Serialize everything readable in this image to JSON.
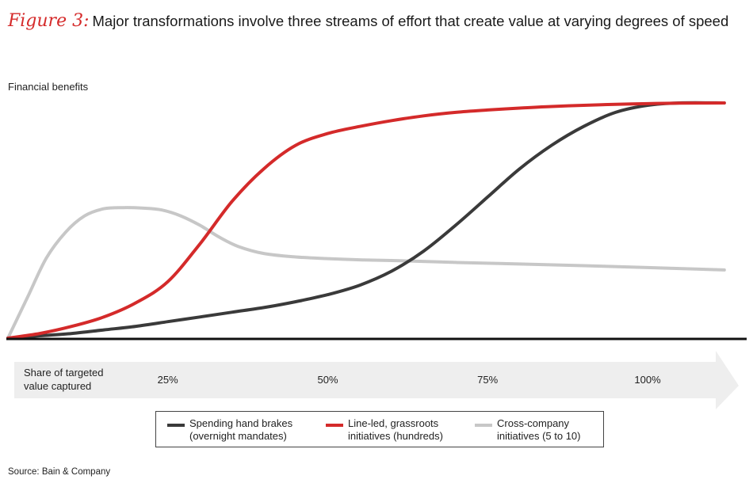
{
  "title": {
    "label": "Figure 3:",
    "text": "Major transformations involve three streams of effort that create value at varying degrees of speed"
  },
  "source": "Source: Bain & Company",
  "chart_data": {
    "type": "line",
    "ylabel": "Financial benefits",
    "xlabel": "Share of targeted\nvalue captured",
    "x_ticks": [
      "25%",
      "50%",
      "75%",
      "100%"
    ],
    "x_tick_values": [
      25,
      50,
      75,
      100
    ],
    "xlim": [
      0,
      115
    ],
    "ylim": [
      0,
      1
    ],
    "grid": false,
    "legend_position": "bottom",
    "series": [
      {
        "name": "Spending hand brakes\n(overnight mandates)",
        "color": "#3a3a3a",
        "x": [
          0,
          5,
          10,
          15,
          20,
          25,
          30,
          35,
          40,
          45,
          50,
          55,
          60,
          65,
          70,
          75,
          80,
          85,
          90,
          95,
          100,
          105,
          112
        ],
        "y": [
          0,
          0.01,
          0.02,
          0.035,
          0.05,
          0.07,
          0.09,
          0.11,
          0.13,
          0.155,
          0.185,
          0.225,
          0.285,
          0.37,
          0.48,
          0.6,
          0.72,
          0.82,
          0.9,
          0.96,
          0.99,
          1.0,
          1.0
        ]
      },
      {
        "name": "Line-led, grassroots\ninitiatives (hundreds)",
        "color": "#d42a2a",
        "x": [
          0,
          5,
          10,
          15,
          20,
          25,
          30,
          35,
          40,
          45,
          50,
          55,
          60,
          65,
          70,
          75,
          80,
          85,
          90,
          95,
          100,
          105,
          112
        ],
        "y": [
          0,
          0.02,
          0.05,
          0.09,
          0.15,
          0.24,
          0.4,
          0.58,
          0.72,
          0.82,
          0.87,
          0.9,
          0.925,
          0.945,
          0.96,
          0.97,
          0.978,
          0.985,
          0.99,
          0.994,
          0.997,
          0.999,
          1.0
        ]
      },
      {
        "name": "Cross-company\ninitiatives (5 to 10)",
        "color": "#c7c7c7",
        "x": [
          0,
          3,
          6,
          9,
          12,
          15,
          18,
          21,
          24,
          27,
          30,
          33,
          36,
          40,
          45,
          50,
          55,
          60,
          70,
          80,
          90,
          100,
          112
        ],
        "y": [
          0,
          0.17,
          0.34,
          0.45,
          0.52,
          0.55,
          0.555,
          0.553,
          0.545,
          0.52,
          0.48,
          0.43,
          0.39,
          0.36,
          0.345,
          0.338,
          0.333,
          0.33,
          0.322,
          0.315,
          0.308,
          0.3,
          0.29
        ]
      }
    ]
  }
}
